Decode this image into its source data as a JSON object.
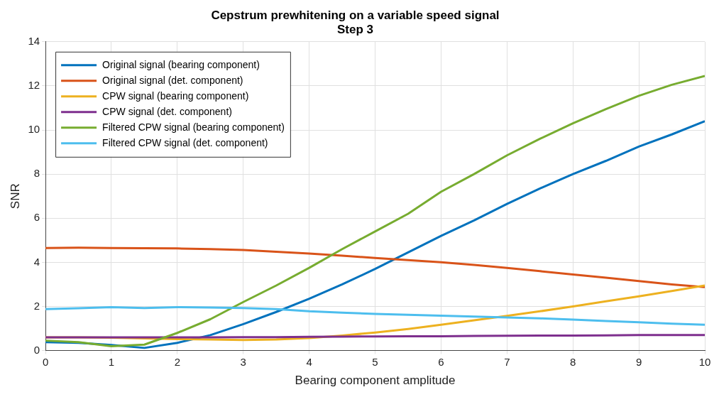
{
  "chart_data": {
    "type": "line",
    "title": "Cepstrum prewhitening on a variable speed signal",
    "subtitle": "Step 3",
    "xlabel": "Bearing component amplitude",
    "ylabel": "SNR",
    "x": [
      0,
      0.5,
      1,
      1.5,
      2,
      2.5,
      3,
      3.5,
      4,
      4.5,
      5,
      5.5,
      6,
      6.5,
      7,
      7.5,
      8,
      8.5,
      9,
      9.5,
      10
    ],
    "xlim": [
      0,
      10
    ],
    "xticks": [
      0,
      1,
      2,
      3,
      4,
      5,
      6,
      7,
      8,
      9,
      10
    ],
    "ylim": [
      0,
      14
    ],
    "yticks": [
      0,
      2,
      4,
      6,
      8,
      10,
      12,
      14
    ],
    "grid": true,
    "legend": "top left",
    "marker": "none",
    "line_style": "solid",
    "series": [
      {
        "name": "Original signal (bearing component)",
        "color": "#0072bd",
        "values": [
          0.38,
          0.35,
          0.25,
          0.12,
          0.35,
          0.7,
          1.2,
          1.75,
          2.35,
          3.0,
          3.7,
          4.45,
          5.2,
          5.9,
          6.65,
          7.35,
          8.0,
          8.6,
          9.25,
          9.8,
          10.4
        ]
      },
      {
        "name": "Original signal (det. component)",
        "color": "#d95319",
        "values": [
          4.65,
          4.66,
          4.65,
          4.64,
          4.63,
          4.6,
          4.56,
          4.48,
          4.4,
          4.3,
          4.2,
          4.1,
          4.0,
          3.88,
          3.75,
          3.6,
          3.45,
          3.3,
          3.15,
          3.0,
          2.88
        ]
      },
      {
        "name": "CPW signal (bearing component)",
        "color": "#edb120",
        "values": [
          0.6,
          0.6,
          0.58,
          0.55,
          0.52,
          0.5,
          0.48,
          0.5,
          0.57,
          0.68,
          0.82,
          0.98,
          1.17,
          1.37,
          1.57,
          1.78,
          2.0,
          2.23,
          2.46,
          2.7,
          2.95
        ]
      },
      {
        "name": "CPW signal (det. component)",
        "color": "#7e2f8e",
        "values": [
          0.6,
          0.6,
          0.6,
          0.6,
          0.6,
          0.6,
          0.61,
          0.61,
          0.62,
          0.63,
          0.64,
          0.65,
          0.65,
          0.66,
          0.67,
          0.68,
          0.68,
          0.69,
          0.7,
          0.7,
          0.7
        ]
      },
      {
        "name": "Filtered CPW signal (bearing component)",
        "color": "#77ac30",
        "values": [
          0.45,
          0.38,
          0.2,
          0.27,
          0.8,
          1.42,
          2.2,
          2.95,
          3.75,
          4.6,
          5.4,
          6.2,
          7.2,
          8.0,
          8.85,
          9.6,
          10.3,
          10.95,
          11.55,
          12.05,
          12.45
        ]
      },
      {
        "name": "Filtered CPW signal (det. component)",
        "color": "#4dbeee",
        "values": [
          1.88,
          1.92,
          1.97,
          1.93,
          1.97,
          1.95,
          1.93,
          1.88,
          1.78,
          1.72,
          1.66,
          1.62,
          1.58,
          1.54,
          1.5,
          1.46,
          1.4,
          1.34,
          1.28,
          1.22,
          1.17
        ]
      }
    ]
  }
}
